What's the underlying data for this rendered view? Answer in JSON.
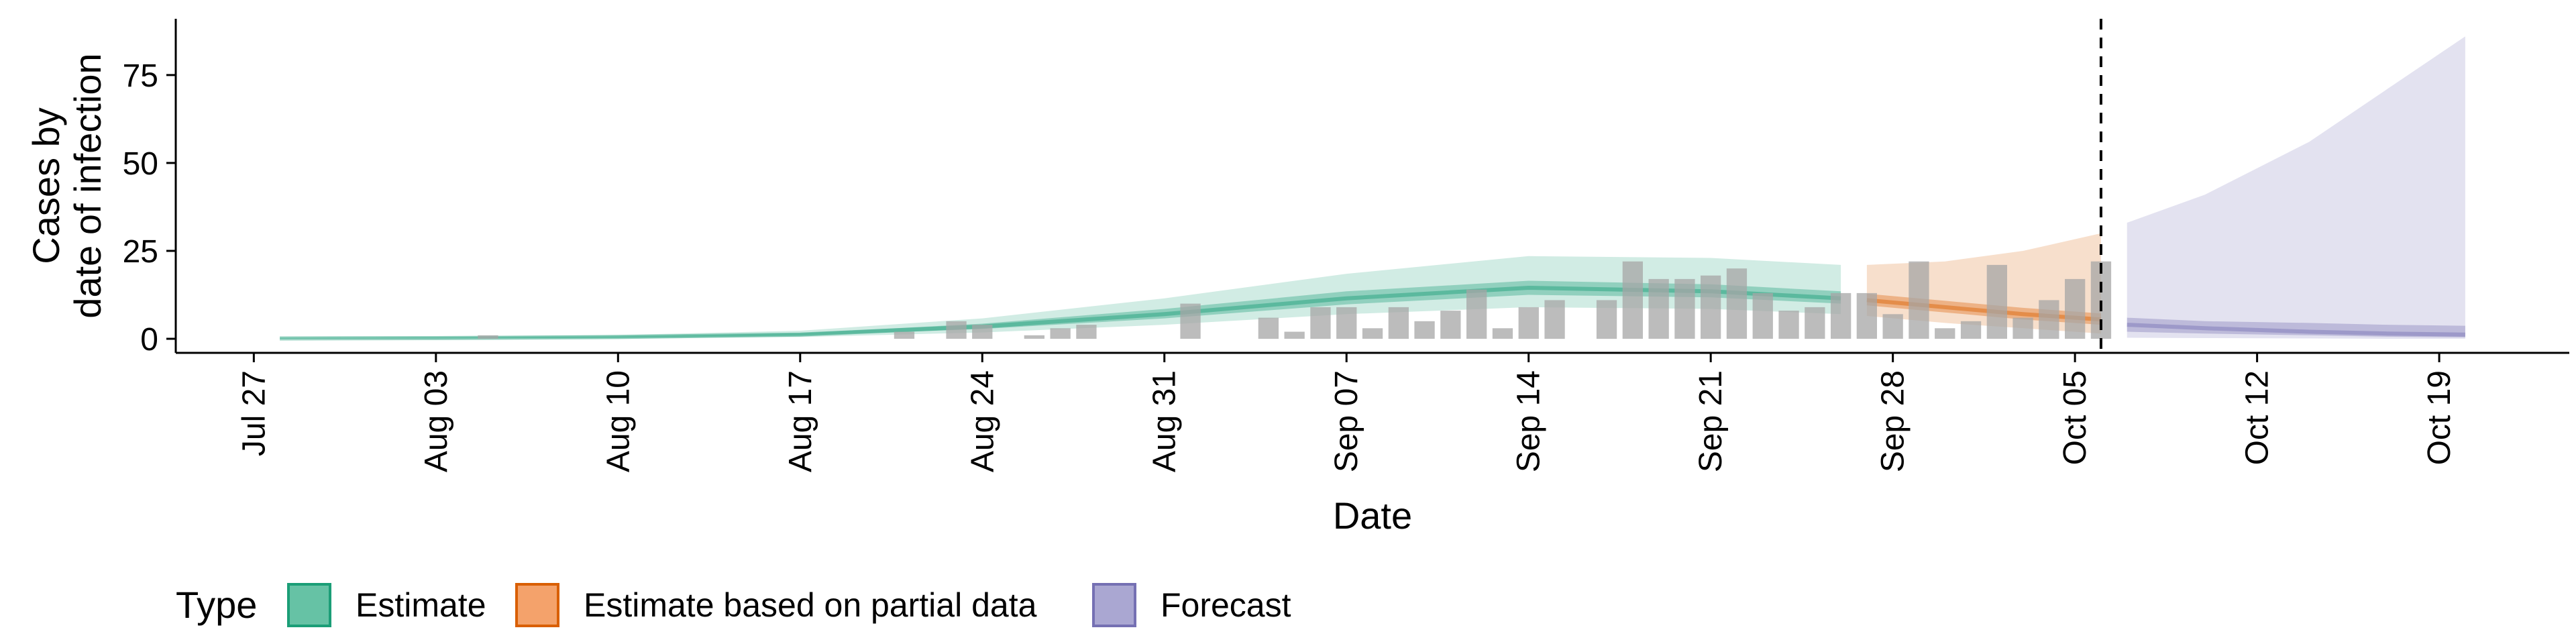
{
  "chart_data": {
    "type": "bar+area",
    "xlabel": "Date",
    "ylabel_lines": [
      "Cases by",
      "date of infection"
    ],
    "x_ticks": [
      "Jul 27",
      "Aug 03",
      "Aug 10",
      "Aug 17",
      "Aug 24",
      "Aug 31",
      "Sep 07",
      "Sep 14",
      "Sep 21",
      "Sep 28",
      "Oct 05",
      "Oct 12",
      "Oct 19"
    ],
    "y_ticks": [
      "0",
      "25",
      "50",
      "75"
    ],
    "x_range": [
      "2020-07-24",
      "2020-10-24"
    ],
    "ylim": [
      -4,
      91
    ],
    "forecast_start_marker": "2020-10-06",
    "legend": {
      "title": "Type",
      "position": "bottom",
      "items": [
        {
          "label": "Estimate",
          "fill": "#66c2a5",
          "stroke": "#1b9e77"
        },
        {
          "label": "Estimate based on partial data",
          "fill": "#f4a26b",
          "stroke": "#d95f02"
        },
        {
          "label": "Forecast",
          "fill": "#aaa7d2",
          "stroke": "#7570b3"
        }
      ]
    },
    "colors": {
      "bars": "#a6a6a6",
      "estimate": "#1b9e77",
      "partial": "#d95f02",
      "forecast": "#7570b3"
    },
    "reported_cases": [
      {
        "date": "2020-08-05",
        "value": 1
      },
      {
        "date": "2020-08-21",
        "value": 2
      },
      {
        "date": "2020-08-23",
        "value": 5
      },
      {
        "date": "2020-08-24",
        "value": 4
      },
      {
        "date": "2020-08-26",
        "value": 1
      },
      {
        "date": "2020-08-27",
        "value": 3
      },
      {
        "date": "2020-08-28",
        "value": 4
      },
      {
        "date": "2020-09-01",
        "value": 10
      },
      {
        "date": "2020-09-04",
        "value": 6
      },
      {
        "date": "2020-09-05",
        "value": 2
      },
      {
        "date": "2020-09-06",
        "value": 9
      },
      {
        "date": "2020-09-07",
        "value": 9
      },
      {
        "date": "2020-09-08",
        "value": 3
      },
      {
        "date": "2020-09-09",
        "value": 9
      },
      {
        "date": "2020-09-10",
        "value": 5
      },
      {
        "date": "2020-09-11",
        "value": 8
      },
      {
        "date": "2020-09-12",
        "value": 14
      },
      {
        "date": "2020-09-13",
        "value": 3
      },
      {
        "date": "2020-09-14",
        "value": 9
      },
      {
        "date": "2020-09-15",
        "value": 11
      },
      {
        "date": "2020-09-17",
        "value": 11
      },
      {
        "date": "2020-09-18",
        "value": 22
      },
      {
        "date": "2020-09-19",
        "value": 17
      },
      {
        "date": "2020-09-20",
        "value": 17
      },
      {
        "date": "2020-09-21",
        "value": 18
      },
      {
        "date": "2020-09-22",
        "value": 20
      },
      {
        "date": "2020-09-23",
        "value": 13
      },
      {
        "date": "2020-09-24",
        "value": 8
      },
      {
        "date": "2020-09-25",
        "value": 9
      },
      {
        "date": "2020-09-26",
        "value": 13
      },
      {
        "date": "2020-09-27",
        "value": 13
      },
      {
        "date": "2020-09-28",
        "value": 7
      },
      {
        "date": "2020-09-29",
        "value": 22
      },
      {
        "date": "2020-09-30",
        "value": 3
      },
      {
        "date": "2020-10-01",
        "value": 5
      },
      {
        "date": "2020-10-02",
        "value": 21
      },
      {
        "date": "2020-10-03",
        "value": 6
      },
      {
        "date": "2020-10-04",
        "value": 11
      },
      {
        "date": "2020-10-05",
        "value": 17
      },
      {
        "date": "2020-10-06",
        "value": 22
      }
    ],
    "series": [
      {
        "type_key": "estimate",
        "points": [
          {
            "date": "2020-07-28",
            "mid": 0.1,
            "lo50": 0.05,
            "hi50": 0.2,
            "lo90": 0,
            "hi90": 0.4
          },
          {
            "date": "2020-08-03",
            "mid": 0.2,
            "lo50": 0.1,
            "hi50": 0.35,
            "lo90": 0,
            "hi90": 0.6
          },
          {
            "date": "2020-08-10",
            "mid": 0.5,
            "lo50": 0.3,
            "hi50": 0.7,
            "lo90": 0.1,
            "hi90": 1.1
          },
          {
            "date": "2020-08-17",
            "mid": 1.2,
            "lo50": 0.9,
            "hi50": 1.6,
            "lo90": 0.5,
            "hi90": 2.3
          },
          {
            "date": "2020-08-24",
            "mid": 3.5,
            "lo50": 2.8,
            "hi50": 4.3,
            "lo90": 1.8,
            "hi90": 5.8
          },
          {
            "date": "2020-08-31",
            "mid": 7,
            "lo50": 5.8,
            "hi50": 8.5,
            "lo90": 4,
            "hi90": 11.5
          },
          {
            "date": "2020-09-07",
            "mid": 11.5,
            "lo50": 9.8,
            "hi50": 13.5,
            "lo90": 7,
            "hi90": 18.5
          },
          {
            "date": "2020-09-14",
            "mid": 14.5,
            "lo50": 12.5,
            "hi50": 16.5,
            "lo90": 9,
            "hi90": 23.5
          },
          {
            "date": "2020-09-21",
            "mid": 13.5,
            "lo50": 11.8,
            "hi50": 15.5,
            "lo90": 8.5,
            "hi90": 23
          },
          {
            "date": "2020-09-26",
            "mid": 11.5,
            "lo50": 10,
            "hi50": 13.5,
            "lo90": 7,
            "hi90": 21
          }
        ]
      },
      {
        "type_key": "partial",
        "points": [
          {
            "date": "2020-09-27",
            "mid": 11,
            "lo50": 9.5,
            "hi50": 12.8,
            "lo90": 6.5,
            "hi90": 21
          },
          {
            "date": "2020-09-30",
            "mid": 9,
            "lo50": 7.5,
            "hi50": 10.8,
            "lo90": 4.5,
            "hi90": 22
          },
          {
            "date": "2020-10-03",
            "mid": 7,
            "lo50": 5.5,
            "hi50": 8.8,
            "lo90": 3,
            "hi90": 25
          },
          {
            "date": "2020-10-06",
            "mid": 5.5,
            "lo50": 4,
            "hi50": 7.2,
            "lo90": 1.5,
            "hi90": 30
          }
        ]
      },
      {
        "type_key": "forecast",
        "points": [
          {
            "date": "2020-10-07",
            "mid": 4,
            "lo50": 2,
            "hi50": 6,
            "lo90": 0.3,
            "hi90": 33
          },
          {
            "date": "2020-10-10",
            "mid": 3,
            "lo50": 1.5,
            "hi50": 5,
            "lo90": 0.2,
            "hi90": 41
          },
          {
            "date": "2020-10-14",
            "mid": 2,
            "lo50": 1,
            "hi50": 4.5,
            "lo90": 0.1,
            "hi90": 56
          },
          {
            "date": "2020-10-17",
            "mid": 1.5,
            "lo50": 0.6,
            "hi50": 4,
            "lo90": 0,
            "hi90": 71
          },
          {
            "date": "2020-10-20",
            "mid": 1.2,
            "lo50": 0.4,
            "hi50": 3.7,
            "lo90": 0,
            "hi90": 86
          }
        ]
      }
    ]
  }
}
